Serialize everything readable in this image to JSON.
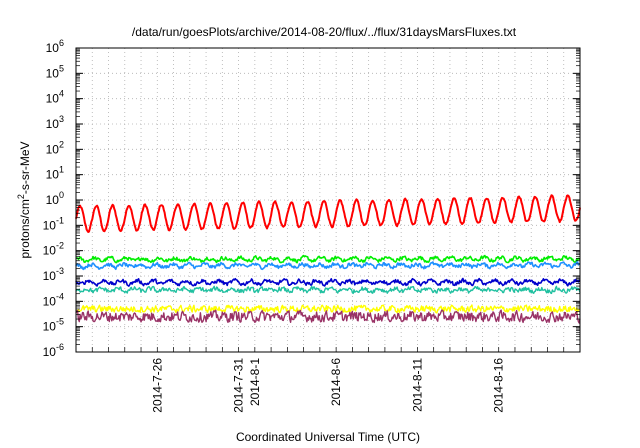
{
  "chart_data": {
    "type": "line",
    "title": "/data/run/goesPlots/archive/2014-08-20/flux/../flux/31daysMarsFluxes.txt",
    "xlabel": "Coordinated Universal Time (UTC)",
    "ylabel": {
      "base": "protons/cm",
      "sup": "2",
      "rest": "-s-sr-MeV"
    },
    "yscale": "log",
    "ylim_exp": [
      -6,
      6
    ],
    "ytick_exps": [
      -6,
      -5,
      -4,
      -3,
      -2,
      -1,
      0,
      1,
      2,
      3,
      4,
      5,
      6
    ],
    "ytick_base": "10",
    "xlim_days": [
      0,
      31
    ],
    "xticks": [
      {
        "label": "2014-7-26",
        "day": 5
      },
      {
        "label": "2014-7-31",
        "day": 10
      },
      {
        "label": "2014-8-1",
        "day": 11
      },
      {
        "label": "2014-8-6",
        "day": 16
      },
      {
        "label": "2014-8-11",
        "day": 21
      },
      {
        "label": "2014-8-16",
        "day": 26
      }
    ],
    "grid": true,
    "legend": "none",
    "series": [
      {
        "color": "#ff0000",
        "base_log": -0.75,
        "amp": 0.5,
        "period": 1.0,
        "trend": 0.0135,
        "noise": 0.06,
        "width": 2.0
      },
      {
        "color": "#00ee00",
        "base_log": -2.35,
        "amp": 0.06,
        "period": 1.0,
        "trend": 0.001,
        "noise": 0.1,
        "width": 1.6
      },
      {
        "color": "#1e90ff",
        "base_log": -2.6,
        "amp": 0.06,
        "period": 1.0,
        "trend": 0.001,
        "noise": 0.1,
        "width": 1.6
      },
      {
        "color": "#0000cc",
        "base_log": -3.25,
        "amp": 0.07,
        "period": 1.0,
        "trend": 0.0,
        "noise": 0.1,
        "width": 1.6
      },
      {
        "color": "#20c0a0",
        "base_log": -3.55,
        "amp": 0.05,
        "period": 1.0,
        "trend": 0.0,
        "noise": 0.12,
        "width": 1.4
      },
      {
        "color": "#ffff00",
        "base_log": -4.3,
        "amp": 0.0,
        "period": 1.0,
        "trend": 0.0,
        "noise": 0.18,
        "width": 1.4
      },
      {
        "color": "#993366",
        "base_log": -4.6,
        "amp": 0.0,
        "period": 1.0,
        "trend": 0.0,
        "noise": 0.28,
        "width": 1.4
      }
    ]
  }
}
